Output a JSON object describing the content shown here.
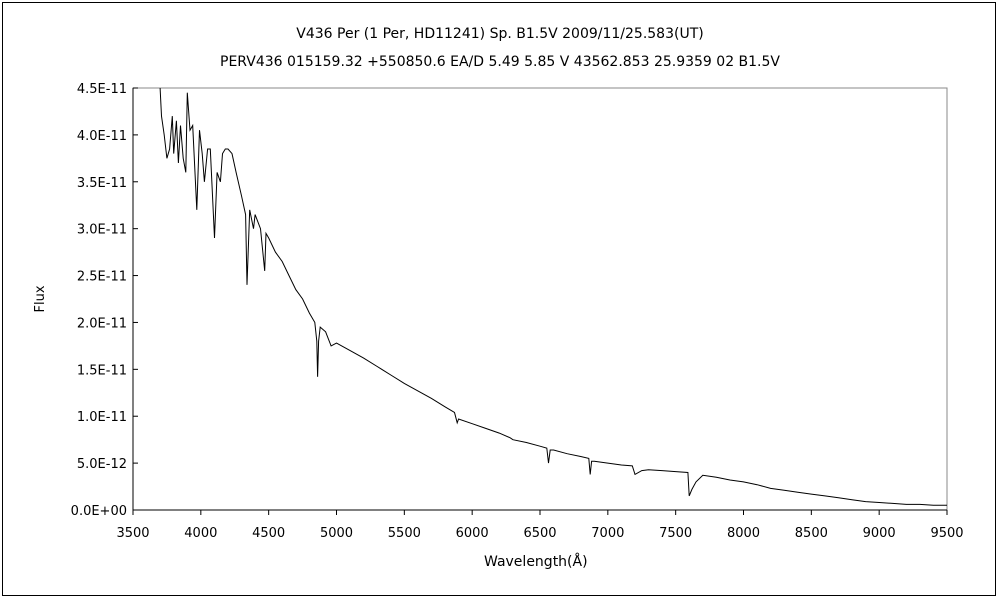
{
  "chart_data": {
    "type": "line",
    "title": "V436 Per (1 Per, HD11241)    Sp. B1.5V   2009/11/25.583(UT)",
    "subtitle": "PERV436 015159.32 +550850.6 EA/D 5.49 5.85 V 43562.853 25.9359 02 B1.5V",
    "xlabel": "Wavelength(Å)",
    "ylabel": "Flux",
    "xlim": [
      3500,
      9500
    ],
    "ylim": [
      0,
      4.5e-11
    ],
    "xticks": [
      "3500",
      "4000",
      "4500",
      "5000",
      "5500",
      "6000",
      "6500",
      "7000",
      "7500",
      "8000",
      "8500",
      "9000",
      "9500"
    ],
    "yticks": [
      "0.0E+00",
      "5.0E-12",
      "1.0E-11",
      "1.5E-11",
      "2.0E-11",
      "2.5E-11",
      "3.0E-11",
      "3.5E-11",
      "4.0E-11",
      "4.5E-11"
    ],
    "grid": false,
    "line_color": "#000000",
    "x": [
      3700,
      3710,
      3730,
      3750,
      3770,
      3790,
      3800,
      3820,
      3835,
      3850,
      3870,
      3889,
      3900,
      3920,
      3940,
      3970,
      3990,
      4010,
      4026,
      4050,
      4070,
      4101,
      4120,
      4144,
      4160,
      4180,
      4200,
      4230,
      4260,
      4300,
      4330,
      4340,
      4360,
      4388,
      4400,
      4440,
      4471,
      4480,
      4500,
      4550,
      4600,
      4650,
      4700,
      4750,
      4800,
      4840,
      4855,
      4861,
      4868,
      4880,
      4920,
      4960,
      5000,
      5050,
      5100,
      5200,
      5300,
      5400,
      5500,
      5600,
      5700,
      5800,
      5870,
      5890,
      5900,
      6000,
      6100,
      6200,
      6280,
      6300,
      6400,
      6500,
      6550,
      6563,
      6575,
      6600,
      6700,
      6800,
      6860,
      6870,
      6880,
      6900,
      7000,
      7100,
      7180,
      7200,
      7250,
      7300,
      7400,
      7500,
      7590,
      7600,
      7620,
      7650,
      7700,
      7800,
      7900,
      8000,
      8100,
      8200,
      8300,
      8400,
      8500,
      8600,
      8700,
      8800,
      8900,
      9000,
      9100,
      9200,
      9300,
      9400,
      9500
    ],
    "y": [
      4.5e-11,
      4.2e-11,
      4e-11,
      3.75e-11,
      3.85e-11,
      4.2e-11,
      3.8e-11,
      4.15e-11,
      3.7e-11,
      4.1e-11,
      3.75e-11,
      3.6e-11,
      4.45e-11,
      4.05e-11,
      4.1e-11,
      3.2e-11,
      4.05e-11,
      3.8e-11,
      3.5e-11,
      3.85e-11,
      3.85e-11,
      2.9e-11,
      3.6e-11,
      3.5e-11,
      3.8e-11,
      3.85e-11,
      3.85e-11,
      3.8e-11,
      3.6e-11,
      3.35e-11,
      3.15e-11,
      2.4e-11,
      3.2e-11,
      3e-11,
      3.15e-11,
      3e-11,
      2.55e-11,
      2.95e-11,
      2.9e-11,
      2.75e-11,
      2.65e-11,
      2.5e-11,
      2.35e-11,
      2.25e-11,
      2.1e-11,
      2e-11,
      1.8e-11,
      1.42e-11,
      1.8e-11,
      1.95e-11,
      1.9e-11,
      1.75e-11,
      1.78e-11,
      1.74e-11,
      1.7e-11,
      1.62e-11,
      1.53e-11,
      1.44e-11,
      1.35e-11,
      1.27e-11,
      1.19e-11,
      1.1e-11,
      1.04e-11,
      9.3e-12,
      9.7e-12,
      9.2e-12,
      8.7e-12,
      8.2e-12,
      7.7e-12,
      7.5e-12,
      7.2e-12,
      6.8e-12,
      6.6e-12,
      5e-12,
      6.4e-12,
      6.4e-12,
      6e-12,
      5.7e-12,
      5.5e-12,
      3.8e-12,
      5.2e-12,
      5.2e-12,
      5e-12,
      4.8e-12,
      4.7e-12,
      3.8e-12,
      4.2e-12,
      4.3e-12,
      4.2e-12,
      4.1e-12,
      4e-12,
      1.5e-12,
      2.2e-12,
      3e-12,
      3.7e-12,
      3.5e-12,
      3.2e-12,
      3e-12,
      2.7e-12,
      2.3e-12,
      2.1e-12,
      1.9e-12,
      1.7e-12,
      1.5e-12,
      1.3e-12,
      1.1e-12,
      9e-13,
      8e-13,
      7e-13,
      6e-13,
      6e-13,
      5e-13,
      5e-13
    ]
  }
}
